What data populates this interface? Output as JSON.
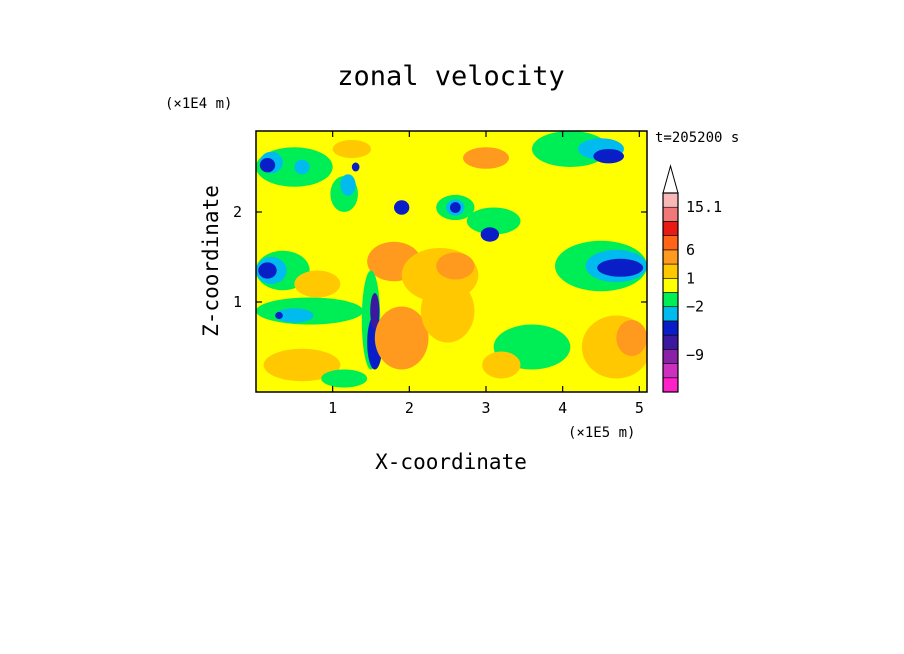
{
  "chart_data": {
    "type": "heatmap",
    "title": "zonal velocity",
    "xlabel": "X-coordinate",
    "ylabel": "Z-coordinate",
    "x_unit": "(×1E5 m)",
    "y_unit": "(×1E4 m)",
    "time_label": "t=205200 s",
    "xlim": [
      0,
      5.1
    ],
    "ylim": [
      0,
      2.9
    ],
    "x_ticks": [
      {
        "value": 1,
        "label": "1"
      },
      {
        "value": 2,
        "label": "2"
      },
      {
        "value": 3,
        "label": "3"
      },
      {
        "value": 4,
        "label": "4"
      },
      {
        "value": 5,
        "label": "5"
      }
    ],
    "y_ticks": [
      {
        "value": 1,
        "label": "1"
      },
      {
        "value": 2,
        "label": "2"
      }
    ],
    "colorbar": {
      "levels": [
        {
          "color": "#ff20c8"
        },
        {
          "color": "#cc30c0"
        },
        {
          "color": "#8a20a8"
        },
        {
          "color": "#3a18a0"
        },
        {
          "color": "#0a1ec8"
        },
        {
          "color": "#00bbee"
        },
        {
          "color": "#00ee55"
        },
        {
          "color": "#ffff00"
        },
        {
          "color": "#ffc800"
        },
        {
          "color": "#ff9a1e"
        },
        {
          "color": "#ff6418"
        },
        {
          "color": "#e81a14"
        },
        {
          "color": "#f07878"
        },
        {
          "color": "#f8b8b8"
        }
      ],
      "tick_labels": [
        {
          "label": "15.1",
          "level_boundary": 13
        },
        {
          "label": "6",
          "level_boundary": 10
        },
        {
          "label": "1",
          "level_boundary": 8
        },
        {
          "label": "−2",
          "level_boundary": 6
        },
        {
          "label": "−9",
          "level_boundary": 2.6
        }
      ]
    },
    "field": {
      "background_color": "#ffff00",
      "blobs": [
        {
          "x": 0.5,
          "y": 2.5,
          "rx": 0.5,
          "ry": 0.22,
          "color": "#00ee55"
        },
        {
          "x": 0.2,
          "y": 2.55,
          "rx": 0.15,
          "ry": 0.12,
          "color": "#00bbee"
        },
        {
          "x": 0.6,
          "y": 2.5,
          "rx": 0.1,
          "ry": 0.08,
          "color": "#00bbee"
        },
        {
          "x": 0.15,
          "y": 2.52,
          "rx": 0.1,
          "ry": 0.08,
          "color": "#0a1ec8"
        },
        {
          "x": 1.25,
          "y": 2.7,
          "rx": 0.25,
          "ry": 0.1,
          "color": "#ffc800"
        },
        {
          "x": 1.15,
          "y": 2.2,
          "rx": 0.18,
          "ry": 0.2,
          "color": "#00ee55"
        },
        {
          "x": 1.2,
          "y": 2.3,
          "rx": 0.1,
          "ry": 0.12,
          "color": "#00bbee"
        },
        {
          "x": 1.3,
          "y": 2.5,
          "rx": 0.05,
          "ry": 0.05,
          "color": "#0a1ec8"
        },
        {
          "x": 1.9,
          "y": 2.05,
          "rx": 0.1,
          "ry": 0.08,
          "color": "#0a1ec8"
        },
        {
          "x": 2.6,
          "y": 2.05,
          "rx": 0.25,
          "ry": 0.14,
          "color": "#00ee55"
        },
        {
          "x": 2.6,
          "y": 2.05,
          "rx": 0.12,
          "ry": 0.09,
          "color": "#00bbee"
        },
        {
          "x": 2.6,
          "y": 2.05,
          "rx": 0.07,
          "ry": 0.06,
          "color": "#0a1ec8"
        },
        {
          "x": 3.0,
          "y": 2.6,
          "rx": 0.3,
          "ry": 0.12,
          "color": "#ff9a1e"
        },
        {
          "x": 3.1,
          "y": 1.9,
          "rx": 0.35,
          "ry": 0.15,
          "color": "#00ee55"
        },
        {
          "x": 3.05,
          "y": 1.75,
          "rx": 0.12,
          "ry": 0.08,
          "color": "#0a1ec8"
        },
        {
          "x": 4.1,
          "y": 2.7,
          "rx": 0.5,
          "ry": 0.2,
          "color": "#00ee55"
        },
        {
          "x": 4.5,
          "y": 2.7,
          "rx": 0.3,
          "ry": 0.12,
          "color": "#00bbee"
        },
        {
          "x": 4.6,
          "y": 2.62,
          "rx": 0.2,
          "ry": 0.08,
          "color": "#0a1ec8"
        },
        {
          "x": 0.35,
          "y": 1.35,
          "rx": 0.35,
          "ry": 0.22,
          "color": "#00ee55"
        },
        {
          "x": 0.2,
          "y": 1.35,
          "rx": 0.2,
          "ry": 0.15,
          "color": "#00bbee"
        },
        {
          "x": 0.15,
          "y": 1.35,
          "rx": 0.12,
          "ry": 0.09,
          "color": "#0a1ec8"
        },
        {
          "x": 0.8,
          "y": 1.2,
          "rx": 0.3,
          "ry": 0.15,
          "color": "#ffc800"
        },
        {
          "x": 1.8,
          "y": 1.45,
          "rx": 0.35,
          "ry": 0.22,
          "color": "#ff9a1e"
        },
        {
          "x": 2.4,
          "y": 1.3,
          "rx": 0.5,
          "ry": 0.3,
          "color": "#ffc800"
        },
        {
          "x": 2.6,
          "y": 1.4,
          "rx": 0.25,
          "ry": 0.15,
          "color": "#ff9a1e"
        },
        {
          "x": 4.5,
          "y": 1.4,
          "rx": 0.6,
          "ry": 0.28,
          "color": "#00ee55"
        },
        {
          "x": 4.7,
          "y": 1.4,
          "rx": 0.4,
          "ry": 0.18,
          "color": "#00bbee"
        },
        {
          "x": 4.75,
          "y": 1.38,
          "rx": 0.3,
          "ry": 0.1,
          "color": "#0a1ec8"
        },
        {
          "x": 0.7,
          "y": 0.9,
          "rx": 0.7,
          "ry": 0.15,
          "color": "#00ee55"
        },
        {
          "x": 0.5,
          "y": 0.85,
          "rx": 0.25,
          "ry": 0.08,
          "color": "#00bbee"
        },
        {
          "x": 0.3,
          "y": 0.85,
          "rx": 0.05,
          "ry": 0.04,
          "color": "#0a1ec8"
        },
        {
          "x": 1.5,
          "y": 0.8,
          "rx": 0.12,
          "ry": 0.55,
          "color": "#00ee55"
        },
        {
          "x": 1.55,
          "y": 0.55,
          "rx": 0.1,
          "ry": 0.3,
          "color": "#0a1ec8"
        },
        {
          "x": 1.55,
          "y": 0.9,
          "rx": 0.06,
          "ry": 0.2,
          "color": "#3a18a0"
        },
        {
          "x": 1.9,
          "y": 0.6,
          "rx": 0.35,
          "ry": 0.35,
          "color": "#ff9a1e"
        },
        {
          "x": 2.5,
          "y": 0.9,
          "rx": 0.35,
          "ry": 0.35,
          "color": "#ffc800"
        },
        {
          "x": 0.6,
          "y": 0.3,
          "rx": 0.5,
          "ry": 0.18,
          "color": "#ffc800"
        },
        {
          "x": 1.15,
          "y": 0.15,
          "rx": 0.3,
          "ry": 0.1,
          "color": "#00ee55"
        },
        {
          "x": 3.6,
          "y": 0.5,
          "rx": 0.5,
          "ry": 0.25,
          "color": "#00ee55"
        },
        {
          "x": 3.2,
          "y": 0.3,
          "rx": 0.25,
          "ry": 0.15,
          "color": "#ffc800"
        },
        {
          "x": 4.7,
          "y": 0.5,
          "rx": 0.45,
          "ry": 0.35,
          "color": "#ffc800"
        },
        {
          "x": 4.9,
          "y": 0.6,
          "rx": 0.2,
          "ry": 0.2,
          "color": "#ff9a1e"
        }
      ]
    }
  }
}
